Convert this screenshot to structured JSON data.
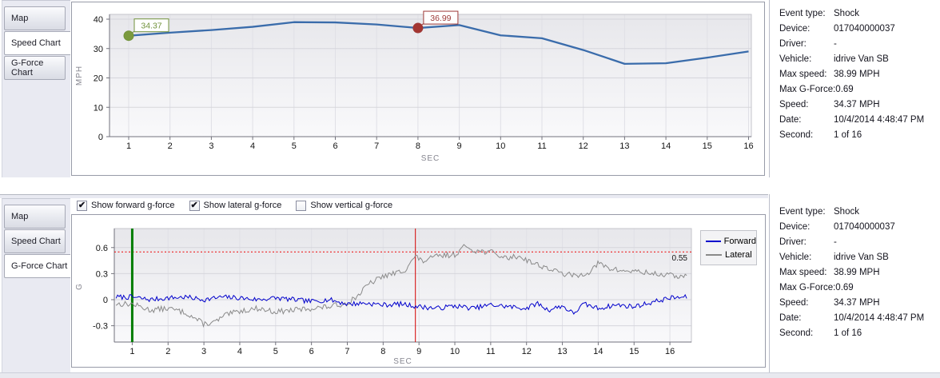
{
  "tabs": [
    "Map",
    "Speed Chart",
    "G-Force Chart"
  ],
  "top_panel": {
    "selected_tab": 1
  },
  "bottom_panel": {
    "selected_tab": 2,
    "checkboxes": [
      {
        "label": "Show forward g-force",
        "checked": true
      },
      {
        "label": "Show lateral g-force",
        "checked": true
      },
      {
        "label": "Show vertical g-force",
        "checked": false
      }
    ]
  },
  "details": {
    "rows": [
      {
        "label": "Event type:",
        "value": "Shock"
      },
      {
        "label": "Device:",
        "value": "017040000037"
      },
      {
        "label": "Driver:",
        "value": "-"
      },
      {
        "label": "Vehicle:",
        "value": "idrive Van SB"
      },
      {
        "label": "Max speed:",
        "value": "38.99 MPH"
      },
      {
        "label": "Max G-Force:",
        "value": "0.69"
      },
      {
        "label": "Speed:",
        "value": "34.37 MPH"
      },
      {
        "label": "Date:",
        "value": "10/4/2014 4:48:47 PM"
      },
      {
        "label": "Second:",
        "value": "1 of 16"
      }
    ]
  },
  "chart_data": [
    {
      "id": "speed",
      "type": "line",
      "title": "",
      "xlabel": "SEC",
      "ylabel": "MPH",
      "x": [
        1,
        2,
        3,
        4,
        5,
        6,
        7,
        8,
        9,
        10,
        11,
        12,
        13,
        14,
        15,
        16
      ],
      "values": [
        34.37,
        35.4,
        36.3,
        37.4,
        38.99,
        38.9,
        38.2,
        36.99,
        38.0,
        34.5,
        33.5,
        29.5,
        24.8,
        25.0,
        26.9,
        29.0
      ],
      "ylim": [
        0,
        41.6
      ],
      "yticks": [
        0,
        10,
        20,
        30,
        40
      ],
      "grid": true,
      "line_color": "#3a6cab",
      "markers": [
        {
          "x": 1,
          "y": 34.37,
          "label": "34.37",
          "color": "#71923b",
          "fill": "#7b9a3d"
        },
        {
          "x": 8,
          "y": 36.99,
          "label": "36.99",
          "color": "#9e3a38",
          "fill": "#a33531"
        }
      ]
    },
    {
      "id": "gforce",
      "type": "line",
      "title": "",
      "xlabel": "SEC",
      "ylabel": "G",
      "xticks": [
        1,
        2,
        3,
        4,
        5,
        6,
        7,
        8,
        9,
        10,
        11,
        12,
        13,
        14,
        15,
        16
      ],
      "ylim": [
        -0.49,
        0.82
      ],
      "yticks": [
        -0.3,
        0,
        0.3,
        0.6
      ],
      "grid": true,
      "legend_position": "right",
      "series": [
        {
          "name": "Forward",
          "color": "#0000cc",
          "noise": 0.028,
          "keyframes": [
            [
              1,
              0.03
            ],
            [
              1.5,
              0
            ],
            [
              2,
              0.02
            ],
            [
              2.5,
              0.03
            ],
            [
              3,
              0
            ],
            [
              3.5,
              0.03
            ],
            [
              4,
              0.02
            ],
            [
              4.5,
              0
            ],
            [
              5,
              0.02
            ],
            [
              5.5,
              0
            ],
            [
              6,
              -0.02
            ],
            [
              6.5,
              0
            ],
            [
              7,
              -0.05
            ],
            [
              7.5,
              -0.04
            ],
            [
              8,
              -0.06
            ],
            [
              8.5,
              -0.05
            ],
            [
              9,
              -0.08
            ],
            [
              9.5,
              -0.1
            ],
            [
              10,
              -0.07
            ],
            [
              10.5,
              -0.1
            ],
            [
              11,
              -0.06
            ],
            [
              11.5,
              -0.08
            ],
            [
              12,
              -0.1
            ],
            [
              12.3,
              -0.04
            ],
            [
              12.6,
              -0.12
            ],
            [
              13,
              -0.07
            ],
            [
              13.3,
              -0.16
            ],
            [
              13.6,
              -0.05
            ],
            [
              14,
              -0.1
            ],
            [
              14.5,
              -0.06
            ],
            [
              15,
              -0.08
            ],
            [
              15.5,
              -0.03
            ],
            [
              16,
              0.02
            ],
            [
              16.5,
              0.03
            ]
          ]
        },
        {
          "name": "Lateral",
          "color": "#8a8a8a",
          "noise": 0.032,
          "keyframes": [
            [
              1,
              -0.05
            ],
            [
              1.5,
              -0.12
            ],
            [
              2,
              -0.1
            ],
            [
              2.5,
              -0.15
            ],
            [
              3,
              -0.28
            ],
            [
              3.3,
              -0.26
            ],
            [
              3.6,
              -0.18
            ],
            [
              4,
              -0.13
            ],
            [
              4.5,
              -0.1
            ],
            [
              5,
              -0.14
            ],
            [
              5.5,
              -0.12
            ],
            [
              6,
              -0.1
            ],
            [
              6.5,
              -0.08
            ],
            [
              7,
              -0.04
            ],
            [
              7.3,
              0.05
            ],
            [
              7.6,
              0.18
            ],
            [
              8,
              0.27
            ],
            [
              8.3,
              0.3
            ],
            [
              8.6,
              0.34
            ],
            [
              8.9,
              0.5
            ],
            [
              9.1,
              0.44
            ],
            [
              9.5,
              0.5
            ],
            [
              10,
              0.52
            ],
            [
              10.3,
              0.62
            ],
            [
              10.6,
              0.56
            ],
            [
              11,
              0.55
            ],
            [
              11.4,
              0.48
            ],
            [
              11.8,
              0.5
            ],
            [
              12.2,
              0.42
            ],
            [
              12.6,
              0.36
            ],
            [
              13,
              0.3
            ],
            [
              13.4,
              0.27
            ],
            [
              13.8,
              0.33
            ],
            [
              14,
              0.42
            ],
            [
              14.3,
              0.36
            ],
            [
              14.7,
              0.33
            ],
            [
              15,
              0.33
            ],
            [
              15.5,
              0.3
            ],
            [
              16,
              0.28
            ],
            [
              16.5,
              0.26
            ]
          ]
        }
      ],
      "threshold": {
        "value": 0.55,
        "label": "0.55",
        "color": "#ee0000"
      },
      "vlines": [
        {
          "x": 1,
          "color": "#007d00",
          "width": 3,
          "name": "event-start-marker"
        },
        {
          "x": 8.9,
          "color": "#d40000",
          "width": 1,
          "name": "shock-second-marker"
        }
      ]
    }
  ]
}
